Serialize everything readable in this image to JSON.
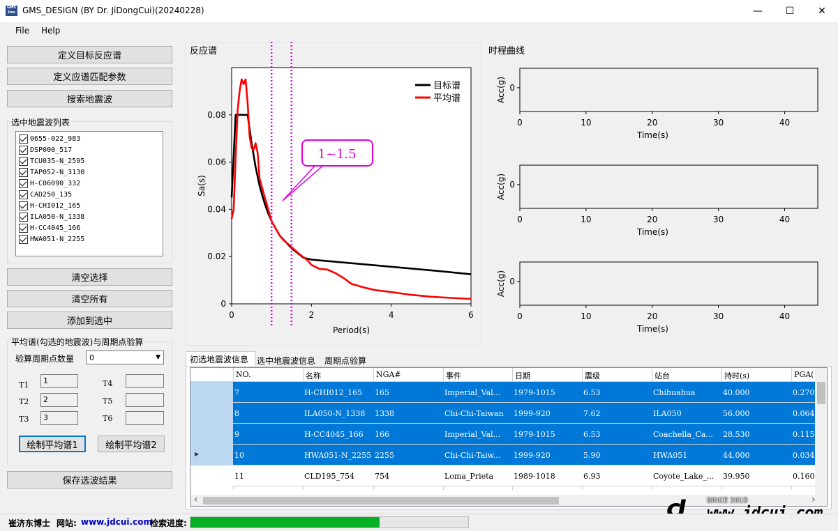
{
  "window": {
    "title": "GMS_DESIGN (BY Dr. JiDongCui)(20240228)",
    "logo_text": "GMS Design",
    "minimize": "—",
    "maximize": "☐",
    "close": "✕"
  },
  "menu": {
    "file": "File",
    "help": "Help"
  },
  "left": {
    "btn_define_target": "定义目标反应谱",
    "btn_define_match": "定义应谱匹配参数",
    "btn_search": "搜索地震波",
    "selected_list_title": "选中地震波列表",
    "selected_items": [
      "0655-022_983",
      "DSP000_517",
      "TCU035-N_2595",
      "TAP052-N_3130",
      "H-C06090_332",
      "CAD250_135",
      "H-CHI012_165",
      "ILA050-N_1338",
      "H-CC4045_166",
      "HWA051-N_2255"
    ],
    "btn_clear_selection": "清空选择",
    "btn_clear_all": "清空所有",
    "btn_add_selected": "添加到选中",
    "avg_group_title": "平均谱(勾选的地震波)与周期点验算",
    "period_count_label": "验算周期点数量",
    "period_count_value": "0",
    "t_labels": [
      "T1",
      "T2",
      "T3",
      "T4",
      "T5",
      "T6"
    ],
    "t_values": [
      "1",
      "2",
      "3",
      "",
      "",
      ""
    ],
    "btn_plot_avg1": "绘制平均谱1",
    "btn_plot_avg2": "绘制平均谱2",
    "btn_save": "保存选波结果"
  },
  "spectrum": {
    "panel_title": "反应谱",
    "callout_text": "1~1.5",
    "chart_data": {
      "type": "line",
      "title": "",
      "xlabel": "Period(s)",
      "ylabel": "Sa(s)",
      "xlim": [
        0,
        6
      ],
      "ylim": [
        0,
        0.1
      ],
      "xticks": [
        0,
        2,
        4,
        6
      ],
      "yticks": [
        0,
        0.02,
        0.04,
        0.06,
        0.08
      ],
      "ytick_labels": [
        "0",
        "0.02",
        "0.04",
        "0.06",
        "0.08"
      ],
      "legend_position": "top-right",
      "vlines": [
        1.0,
        1.5
      ],
      "series": [
        {
          "name": "目标谱",
          "color": "#000000",
          "x": [
            0,
            0.1,
            0.2,
            0.3,
            0.35,
            0.4,
            0.5,
            0.6,
            0.7,
            0.8,
            0.9,
            1.0,
            1.2,
            1.5,
            1.8,
            2.0,
            3.0,
            4.0,
            5.0,
            6.0
          ],
          "y": [
            0.045,
            0.08,
            0.08,
            0.08,
            0.08,
            0.08,
            0.068,
            0.058,
            0.05,
            0.044,
            0.039,
            0.035,
            0.029,
            0.0235,
            0.0195,
            0.0187,
            0.0172,
            0.0157,
            0.0142,
            0.0125
          ]
        },
        {
          "name": "平均谱",
          "color": "#ff0000",
          "x": [
            0,
            0.05,
            0.1,
            0.15,
            0.2,
            0.25,
            0.3,
            0.35,
            0.4,
            0.45,
            0.5,
            0.55,
            0.6,
            0.65,
            0.7,
            0.8,
            0.9,
            1.0,
            1.1,
            1.2,
            1.3,
            1.5,
            1.7,
            1.9,
            2.0,
            2.2,
            2.4,
            2.6,
            2.8,
            3.0,
            3.3,
            3.6,
            4.0,
            4.5,
            5.0,
            5.5,
            6.0
          ],
          "y": [
            0.036,
            0.04,
            0.062,
            0.082,
            0.09,
            0.095,
            0.093,
            0.095,
            0.085,
            0.071,
            0.066,
            0.065,
            0.068,
            0.064,
            0.053,
            0.047,
            0.041,
            0.035,
            0.032,
            0.029,
            0.027,
            0.024,
            0.021,
            0.0185,
            0.0165,
            0.0148,
            0.0145,
            0.013,
            0.011,
            0.0085,
            0.007,
            0.0058,
            0.005,
            0.0038,
            0.003,
            0.0025,
            0.0021
          ]
        }
      ]
    }
  },
  "timehistory": {
    "panel_title": "时程曲线",
    "chart_data": [
      {
        "type": "line",
        "xlabel": "Time(s)",
        "ylabel": "Acc(g)",
        "xlim": [
          0,
          45
        ],
        "xticks": [
          0,
          10,
          20,
          30,
          40
        ],
        "yticks": [
          0
        ],
        "series": []
      },
      {
        "type": "line",
        "xlabel": "Time(s)",
        "ylabel": "Acc(g)",
        "xlim": [
          0,
          45
        ],
        "xticks": [
          0,
          10,
          20,
          30,
          40
        ],
        "yticks": [
          0
        ],
        "series": []
      },
      {
        "type": "line",
        "xlabel": "Time(s)",
        "ylabel": "Acc(g)",
        "xlim": [
          0,
          45
        ],
        "xticks": [
          0,
          10,
          20,
          30,
          40
        ],
        "yticks": [
          0
        ],
        "series": []
      }
    ]
  },
  "tabs": [
    "初选地震波信息",
    "选中地震波信息",
    "周期点验算"
  ],
  "grid": {
    "columns": [
      "NO.",
      "名称",
      "NGA#",
      "事件",
      "日期",
      "震级",
      "站台",
      "持时(s)",
      "PGA("
    ],
    "rows": [
      {
        "selected": true,
        "current": false,
        "cells": [
          "7",
          "H-CHI012_165",
          "165",
          "Imperial_Val...",
          "1979-1015",
          "6.53",
          "Chihuahua",
          "40.000",
          "0.270"
        ]
      },
      {
        "selected": true,
        "current": false,
        "cells": [
          "8",
          "ILA050-N_1338",
          "1338",
          "Chi-Chi-Taiwan",
          "1999-920",
          "7.62",
          "ILA050",
          "56.000",
          "0.064"
        ]
      },
      {
        "selected": true,
        "current": false,
        "cells": [
          "9",
          "H-CC4045_166",
          "166",
          "Imperial_Val...",
          "1979-1015",
          "6.53",
          "Coachella_Ca...",
          "28.530",
          "0.115"
        ]
      },
      {
        "selected": true,
        "current": true,
        "cells": [
          "10",
          "HWA051-N_2255",
          "2255",
          "Chi-Chi-Taiw...",
          "1999-920",
          "5.90",
          "HWA051",
          "44.000",
          "0.034"
        ]
      },
      {
        "selected": false,
        "current": false,
        "cells": [
          "11",
          "CLD195_754",
          "754",
          "Loma_Prieta",
          "1989-1018",
          "6.93",
          "Coyote_Lake_...",
          "39.950",
          "0.160"
        ]
      }
    ]
  },
  "status": {
    "author_label": "崔济东博士",
    "website_label": "网站:",
    "website": "www.jdcui.com",
    "progress_label": "检索进度:",
    "progress": 0.68
  },
  "watermark": {
    "since": "SINCE 2015",
    "url": "www.jdcui.com"
  }
}
